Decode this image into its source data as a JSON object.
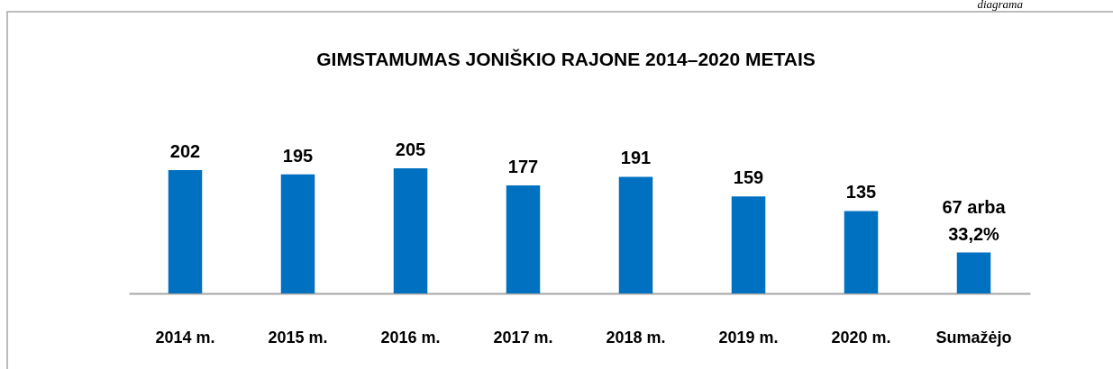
{
  "chart_data": {
    "type": "bar",
    "title": "GIMSTAMUMAS JONIŠKIO RAJONE 2014–2020 METAIS",
    "categories": [
      "2014 m.",
      "2015 m.",
      "2016 m.",
      "2017 m.",
      "2018 m.",
      "2019 m.",
      "2020 m.",
      "Sumažėjo"
    ],
    "values": [
      202,
      195,
      205,
      177,
      191,
      159,
      135,
      67
    ],
    "value_labels": [
      "202",
      "195",
      "205",
      "177",
      "191",
      "159",
      "135",
      "67 arba\n33,2%"
    ],
    "color": "#0070c0",
    "grid": false,
    "tick_labels": "x",
    "annotations": [
      "diagrama"
    ]
  }
}
